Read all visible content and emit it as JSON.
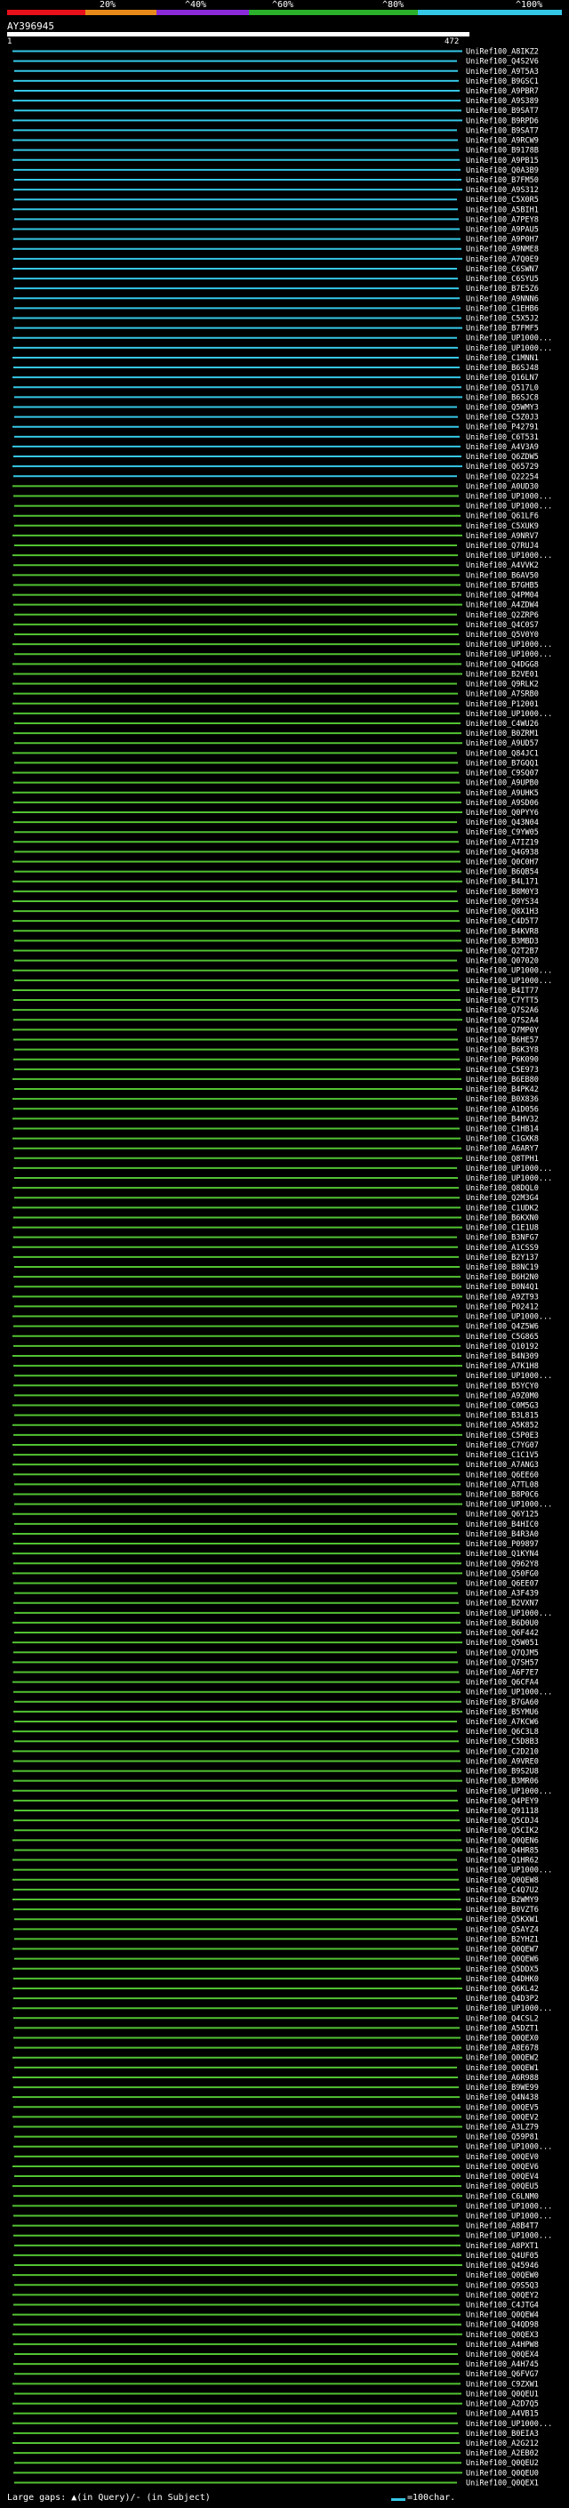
{
  "scale": {
    "labels": [
      "20%",
      "^40%",
      "^60%",
      "^80%",
      "^100%"
    ],
    "colors": [
      "#e8101a",
      "#e88a1a",
      "#8a2ad8",
      "#2ab02a",
      "#35c7e6"
    ]
  },
  "query": {
    "title": "AY396945",
    "start": "1",
    "end": "472"
  },
  "colors": {
    "high": "#35c7e6",
    "mid": "#52c232",
    "gap": "#ffffff"
  },
  "hits": [
    "UniRef100_A8IKZ2",
    "UniRef100_Q4S2V6",
    "UniRef100_A9T5A3",
    "UniRef100_B9GSC1",
    "UniRef100_A9PBR7",
    "UniRef100_A9S389",
    "UniRef100_B9SAT7",
    "UniRef100_B9RPD6",
    "UniRef100_B9SAT7",
    "UniRef100_A9RCW9",
    "UniRef100_B9178B",
    "UniRef100_A9PB15",
    "UniRef100_Q0A3B9",
    "UniRef100_B7FM50",
    "UniRef100_A9S312",
    "UniRef100_C5X0R5",
    "UniRef100_A5BIH1",
    "UniRef100_A7PEY8",
    "UniRef100_A9PAU5",
    "UniRef100_A9P0H7",
    "UniRef100_A9NME8",
    "UniRef100_A7Q0E9",
    "UniRef100_C6SWN7",
    "UniRef100_C6SYU5",
    "UniRef100_B7E5Z6",
    "UniRef100_A9NNN6",
    "UniRef100_C1EHB6",
    "UniRef100_C5X5J2",
    "UniRef100_B7FMF5",
    "UniRef100_UP1000...",
    "UniRef100_UP1000...",
    "UniRef100_C1MNN1",
    "UniRef100_B6SJ48",
    "UniRef100_Q16LN7",
    "UniRef100_Q517L0",
    "UniRef100_B6SJC8",
    "UniRef100_Q5WMY3",
    "UniRef100_C5Z0J3",
    "UniRef100_P42791",
    "UniRef100_C6T531",
    "UniRef100_A4V3A9",
    "UniRef100_Q6ZDW5",
    "UniRef100_Q65729",
    "UniRef100_Q22254",
    "UniRef100_A0UD30",
    "UniRef100_UP1000...",
    "UniRef100_UP1000...",
    "UniRef100_Q61LF6",
    "UniRef100_C5XUK9",
    "UniRef100_A9NRV7",
    "UniRef100_Q7RUJ4",
    "UniRef100_UP1000...",
    "UniRef100_A4VVK2",
    "UniRef100_B6AV50",
    "UniRef100_B7GHB5",
    "UniRef100_Q4PM04",
    "UniRef100_A4ZDW4",
    "UniRef100_Q2ZRP6",
    "UniRef100_Q4C0S7",
    "UniRef100_Q5V0Y0",
    "UniRef100_UP1000...",
    "UniRef100_UP1000...",
    "UniRef100_Q4DGG8",
    "UniRef100_B2VE01",
    "UniRef100_Q9RLK2",
    "UniRef100_A7SRB0",
    "UniRef100_P12001",
    "UniRef100_UP1000...",
    "UniRef100_C4WU26",
    "UniRef100_B0ZRM1",
    "UniRef100_A9UD57",
    "UniRef100_Q84JC1",
    "UniRef100_B7GQQ1",
    "UniRef100_C9SQ07",
    "UniRef100_A9UPB0",
    "UniRef100_A9UHK5",
    "UniRef100_A9SD06",
    "UniRef100_Q0PYY6",
    "UniRef100_Q43N04",
    "UniRef100_C9YW05",
    "UniRef100_A7IZ19",
    "UniRef100_Q4G938",
    "UniRef100_Q0C0H7",
    "UniRef100_B6QB54",
    "UniRef100_B4L171",
    "UniRef100_B8M0Y3",
    "UniRef100_Q9YS34",
    "UniRef100_Q8X1H3",
    "UniRef100_C4D5T7",
    "UniRef100_B4KVR8",
    "UniRef100_B3MBD3",
    "UniRef100_Q2T2B7",
    "UniRef100_Q07020",
    "UniRef100_UP1000...",
    "UniRef100_UP1000...",
    "UniRef100_B4IT77",
    "UniRef100_C7YTT5",
    "UniRef100_Q7S2A6",
    "UniRef100_Q7S2A4",
    "UniRef100_Q7MP0Y",
    "UniRef100_B6HE57",
    "UniRef100_B6K3Y8",
    "UniRef100_P6K090",
    "UniRef100_C5E973",
    "UniRef100_B6EB80",
    "UniRef100_B4PK42",
    "UniRef100_B0X836",
    "UniRef100_A1D056",
    "UniRef100_B4HV32",
    "UniRef100_C1HB14",
    "UniRef100_C1GXK8",
    "UniRef100_A6ARY7",
    "UniRef100_Q8TPH1",
    "UniRef100_UP1000...",
    "UniRef100_UP1000...",
    "UniRef100_Q8DQL0",
    "UniRef100_Q2M3G4",
    "UniRef100_C1UDK2",
    "UniRef100_B6KXN0",
    "UniRef100_C1E1U8",
    "UniRef100_B3NFG7",
    "UniRef100_A1CSS9",
    "UniRef100_B2Y137",
    "UniRef100_B8NC19",
    "UniRef100_B6H2N0",
    "UniRef100_B0N4Q1",
    "UniRef100_A9ZT93",
    "UniRef100_P02412",
    "UniRef100_UP1000...",
    "UniRef100_Q4Z5W6",
    "UniRef100_C5G865",
    "UniRef100_Q10192",
    "UniRef100_B4N309",
    "UniRef100_A7K1H8",
    "UniRef100_UP1000...",
    "UniRef100_B5YCY0",
    "UniRef100_A9Z0M0",
    "UniRef100_C0M5G3",
    "UniRef100_B3L815",
    "UniRef100_A5K852",
    "UniRef100_C5P0E3",
    "UniRef100_C7YG07",
    "UniRef100_C1C1V5",
    "UniRef100_A7ANG3",
    "UniRef100_Q6EE60",
    "UniRef100_A7TL08",
    "UniRef100_B8P0C6",
    "UniRef100_UP1000...",
    "UniRef100_Q6Y125",
    "UniRef100_B4HIC0",
    "UniRef100_B4R3A0",
    "UniRef100_P09897",
    "UniRef100_Q1KYN4",
    "UniRef100_Q962Y8",
    "UniRef100_Q50FG0",
    "UniRef100_Q6EE07",
    "UniRef100_A3F439",
    "UniRef100_B2VXN7",
    "UniRef100_UP1000...",
    "UniRef100_B6D0U0",
    "UniRef100_Q6F442",
    "UniRef100_Q5W051",
    "UniRef100_Q7QJM5",
    "UniRef100_Q7SH57",
    "UniRef100_A6F7E7",
    "UniRef100_Q6CFA4",
    "UniRef100_UP1000...",
    "UniRef100_B7GA60",
    "UniRef100_B5YMU6",
    "UniRef100_A7KCW6",
    "UniRef100_Q6C3L8",
    "UniRef100_C5D8B3",
    "UniRef100_C2D210",
    "UniRef100_A9VRE0",
    "UniRef100_B9S2U8",
    "UniRef100_B3MR06",
    "UniRef100_UP1000...",
    "UniRef100_Q4PEY9",
    "UniRef100_Q91118",
    "UniRef100_Q5CDJ4",
    "UniRef100_Q5CIK2",
    "UniRef100_Q0QEN6",
    "UniRef100_Q4HR85",
    "UniRef100_Q1HR62",
    "UniRef100_UP1000...",
    "UniRef100_Q0QEW8",
    "UniRef100_C4Q7U2",
    "UniRef100_B2WMY9",
    "UniRef100_B0VZT6",
    "UniRef100_Q5KXW1",
    "UniRef100_Q5AYZ4",
    "UniRef100_B2YHZ1",
    "UniRef100_Q0QEW7",
    "UniRef100_Q0QEW6",
    "UniRef100_Q5DDX5",
    "UniRef100_Q4DHK0",
    "UniRef100_Q6KL42",
    "UniRef100_Q4D3P2",
    "UniRef100_UP1000...",
    "UniRef100_Q4CSL2",
    "UniRef100_A5DZT1",
    "UniRef100_Q0QEX0",
    "UniRef100_A8E678",
    "UniRef100_Q0QEW2",
    "UniRef100_Q0QEW1",
    "UniRef100_A6R988",
    "UniRef100_B9WE99",
    "UniRef100_Q4N438",
    "UniRef100_Q0QEV5",
    "UniRef100_Q0QEV2",
    "UniRef100_A3LZ79",
    "UniRef100_Q59P81",
    "UniRef100_UP1000...",
    "UniRef100_Q0QEV0",
    "UniRef100_Q0QEV6",
    "UniRef100_Q0QEV4",
    "UniRef100_Q0QEU5",
    "UniRef100_C6LNM0",
    "UniRef100_UP1000...",
    "UniRef100_UP1000...",
    "UniRef100_A8B4T7",
    "UniRef100_UP1000...",
    "UniRef100_A8PXT1",
    "UniRef100_Q4UF05",
    "UniRef100_Q45946",
    "UniRef100_Q0QEW0",
    "UniRef100_Q9S5Q3",
    "UniRef100_Q0QEY2",
    "UniRef100_C4JTG4",
    "UniRef100_Q0QEW4",
    "UniRef100_Q4QD98",
    "UniRef100_Q0QEX3",
    "UniRef100_A4HPW8",
    "UniRef100_Q0QEX4",
    "UniRef100_A4H745",
    "UniRef100_Q6FVG7",
    "UniRef100_C9ZXW1",
    "UniRef100_Q0QEU1",
    "UniRef100_A2D7Q5",
    "UniRef100_A4VB15",
    "UniRef100_UP1000...",
    "UniRef100_B0EIA3",
    "UniRef100_A2G212",
    "UniRef100_A2EB02",
    "UniRef100_Q0QEU2",
    "UniRef100_Q0QEU0",
    "UniRef100_Q0QEX1"
  ],
  "legend": {
    "text": "Large gaps: ▲(in Query)/- (in Subject)",
    "bar_label": "=100char."
  }
}
